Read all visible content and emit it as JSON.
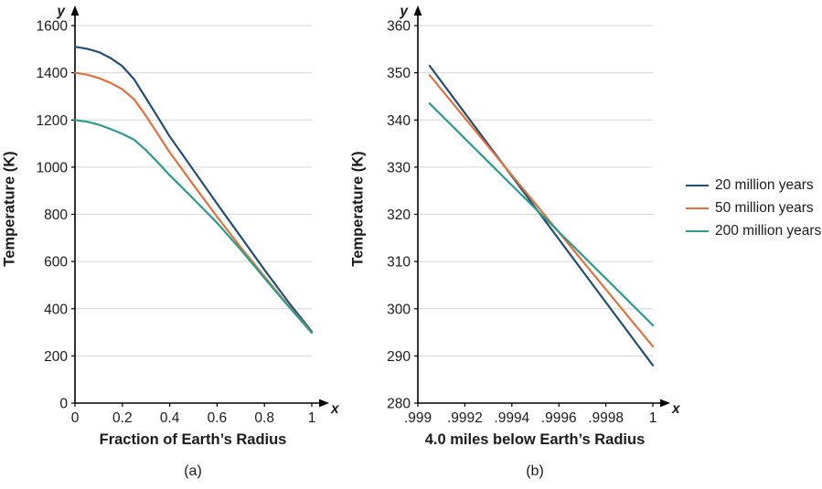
{
  "style": {
    "background": "#ffffff",
    "axis_color": "#000000",
    "grid_color": "#d6d6d6",
    "text_color": "#1b1b1b"
  },
  "legend": {
    "position": "right-of-figure",
    "items": [
      {
        "label": "20 million years",
        "color": "#234f77"
      },
      {
        "label": "50 million years",
        "color": "#e2713d"
      },
      {
        "label": "200 million years",
        "color": "#2a9d8f"
      }
    ]
  },
  "chart_data": [
    {
      "id": "a",
      "type": "line",
      "caption": "(a)",
      "xlabel": "Fraction of Earth’s Radius",
      "ylabel": "Temperature (K)",
      "axis_symbols": {
        "x": "x",
        "y": "y"
      },
      "xlim": [
        0,
        1
      ],
      "ylim": [
        0,
        1600
      ],
      "grid": "horizontal",
      "xticks": [
        {
          "value": 0,
          "label": "0"
        },
        {
          "value": 0.2,
          "label": "0.2"
        },
        {
          "value": 0.4,
          "label": "0.4"
        },
        {
          "value": 0.6,
          "label": "0.6"
        },
        {
          "value": 0.8,
          "label": "0.8"
        },
        {
          "value": 1,
          "label": "1"
        }
      ],
      "yticks": [
        {
          "value": 0,
          "label": "0"
        },
        {
          "value": 200,
          "label": "200"
        },
        {
          "value": 400,
          "label": "400"
        },
        {
          "value": 600,
          "label": "600"
        },
        {
          "value": 800,
          "label": "800"
        },
        {
          "value": 1000,
          "label": "1000"
        },
        {
          "value": 1200,
          "label": "1200"
        },
        {
          "value": 1400,
          "label": "1400"
        },
        {
          "value": 1600,
          "label": "1600"
        }
      ],
      "series": [
        {
          "name": "20 million years",
          "color": "#234f77",
          "points": [
            [
              0,
              1510
            ],
            [
              0.05,
              1502
            ],
            [
              0.1,
              1488
            ],
            [
              0.15,
              1463
            ],
            [
              0.2,
              1428
            ],
            [
              0.25,
              1372
            ],
            [
              0.3,
              1292
            ],
            [
              0.35,
              1212
            ],
            [
              0.4,
              1130
            ],
            [
              0.5,
              988
            ],
            [
              0.6,
              845
            ],
            [
              0.7,
              705
            ],
            [
              0.8,
              565
            ],
            [
              0.9,
              430
            ],
            [
              1,
              303
            ]
          ]
        },
        {
          "name": "50 million years",
          "color": "#e2713d",
          "points": [
            [
              0,
              1400
            ],
            [
              0.05,
              1392
            ],
            [
              0.1,
              1378
            ],
            [
              0.15,
              1357
            ],
            [
              0.2,
              1330
            ],
            [
              0.25,
              1287
            ],
            [
              0.3,
              1217
            ],
            [
              0.35,
              1140
            ],
            [
              0.4,
              1063
            ],
            [
              0.5,
              925
            ],
            [
              0.6,
              790
            ],
            [
              0.7,
              660
            ],
            [
              0.8,
              537
            ],
            [
              0.9,
              415
            ],
            [
              1,
              300
            ]
          ]
        },
        {
          "name": "200 million years",
          "color": "#2a9d8f",
          "points": [
            [
              0,
              1200
            ],
            [
              0.05,
              1193
            ],
            [
              0.1,
              1180
            ],
            [
              0.15,
              1162
            ],
            [
              0.2,
              1141
            ],
            [
              0.25,
              1116
            ],
            [
              0.3,
              1072
            ],
            [
              0.35,
              1020
            ],
            [
              0.4,
              966
            ],
            [
              0.5,
              866
            ],
            [
              0.6,
              764
            ],
            [
              0.7,
              650
            ],
            [
              0.8,
              530
            ],
            [
              0.9,
              412
            ],
            [
              1,
              298
            ]
          ]
        }
      ]
    },
    {
      "id": "b",
      "type": "line",
      "caption": "(b)",
      "xlabel": "4.0 miles below Earth’s Radius",
      "ylabel": "Temperature (K)",
      "axis_symbols": {
        "x": "x",
        "y": "y"
      },
      "xlim": [
        0.999,
        1
      ],
      "ylim": [
        280,
        360
      ],
      "grid": "horizontal",
      "xticks": [
        {
          "value": 0.999,
          "label": ".999"
        },
        {
          "value": 0.9992,
          "label": ".9992"
        },
        {
          "value": 0.9994,
          "label": ".9994"
        },
        {
          "value": 0.9996,
          "label": ".9996"
        },
        {
          "value": 0.9998,
          "label": ".9998"
        },
        {
          "value": 1,
          "label": "1"
        }
      ],
      "yticks": [
        {
          "value": 280,
          "label": "280"
        },
        {
          "value": 290,
          "label": "290"
        },
        {
          "value": 300,
          "label": "300"
        },
        {
          "value": 310,
          "label": "310"
        },
        {
          "value": 320,
          "label": "320"
        },
        {
          "value": 330,
          "label": "330"
        },
        {
          "value": 340,
          "label": "340"
        },
        {
          "value": 350,
          "label": "350"
        },
        {
          "value": 360,
          "label": "360"
        }
      ],
      "series": [
        {
          "name": "20 million years",
          "color": "#234f77",
          "points": [
            [
              0.99905,
              351.5
            ],
            [
              1,
              288
            ]
          ]
        },
        {
          "name": "50 million years",
          "color": "#e2713d",
          "points": [
            [
              0.99905,
              349.5
            ],
            [
              1,
              292
            ]
          ]
        },
        {
          "name": "200 million years",
          "color": "#2a9d8f",
          "points": [
            [
              0.99905,
              343.5
            ],
            [
              1,
              296.5
            ]
          ]
        }
      ]
    }
  ]
}
